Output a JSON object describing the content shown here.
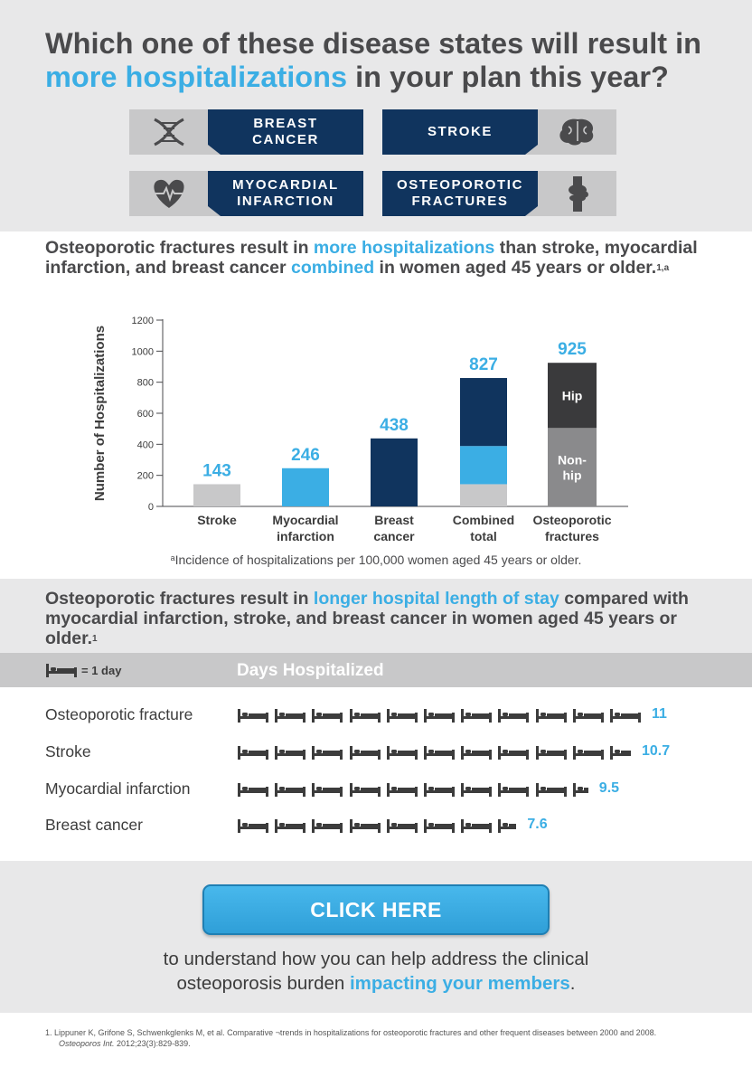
{
  "hero": {
    "line1": "Which one of these disease states will result in",
    "line2_highlight": "more hospitalizations",
    "line2_rest": " in your plan this year?"
  },
  "tiles": [
    {
      "line1": "BREAST",
      "line2": "CANCER",
      "icon": "dna-icon"
    },
    {
      "line1": "STROKE",
      "line2": "",
      "icon": "brain-icon"
    },
    {
      "line1": "MYOCARDIAL",
      "line2": "INFARCTION",
      "icon": "heart-icon"
    },
    {
      "line1": "OSTEOPOROTIC",
      "line2": "FRACTURES",
      "icon": "knee-joint-icon"
    }
  ],
  "section1": {
    "t1": "Osteoporotic fractures result in ",
    "h1": "more hospitalizations",
    "t2": " than stroke, myocardial infarction, and breast cancer ",
    "h2": "combined",
    "t3": " in women aged 45 years or older.",
    "sup": "1,a"
  },
  "chart_data": {
    "type": "bar",
    "ylabel": "Number of Hospitalizations",
    "ylim": [
      0,
      1200
    ],
    "yticks": [
      "0",
      "200",
      "400",
      "600",
      "800",
      "1000",
      "1200"
    ],
    "categories": [
      {
        "label1": "Stroke",
        "label2": ""
      },
      {
        "label1": "Myocardial",
        "label2": "infarction"
      },
      {
        "label1": "Breast",
        "label2": "cancer"
      },
      {
        "label1": "Combined",
        "label2": "total"
      },
      {
        "label1": "Osteoporotic",
        "label2": "fractures"
      }
    ],
    "values": [
      143,
      246,
      438,
      827,
      925
    ],
    "data_labels": [
      "143",
      "246",
      "438",
      "827",
      "925"
    ],
    "combined_stack": [
      143,
      246,
      438
    ],
    "osteoporotic_stack": [
      {
        "name": "Non-hip",
        "label1": "Non-",
        "label2": "hip",
        "value": 505
      },
      {
        "name": "Hip",
        "label1": "Hip",
        "label2": "",
        "value": 420
      }
    ],
    "colors": {
      "stroke": "#c8c8c9",
      "mi": "#3baee4",
      "breast": "#10345e",
      "nonhip": "#8a8a8c",
      "hip": "#3a3a3c",
      "label": "#3baee4"
    },
    "grid": false
  },
  "chart_footnote": {
    "sup": "a",
    "text": "Incidence of hospitalizations per 100,000 women aged 45 years or older."
  },
  "section2": {
    "t1": "Osteoporotic fractures result in ",
    "h1": "longer hospital length of stay",
    "t2": " compared with myocardial infarction, stroke, and breast cancer in women aged 45 years or older.",
    "sup": "1"
  },
  "los": {
    "legend_text": "= 1 day",
    "legend_icon": "bed-icon",
    "header": "Days Hospitalized",
    "rows": [
      {
        "label": "Osteoporotic fracture",
        "value": 11,
        "value_text": "11"
      },
      {
        "label": "Stroke",
        "value": 10.7,
        "value_text": "10.7"
      },
      {
        "label": "Myocardial infarction",
        "value": 9.5,
        "value_text": "9.5"
      },
      {
        "label": "Breast cancer",
        "value": 7.6,
        "value_text": "7.6"
      }
    ]
  },
  "cta": {
    "button": "CLICK HERE",
    "text1": "to understand how you can help address the clinical",
    "text2": "osteoporosis burden ",
    "text2_highlight": "impacting your members",
    "text2_end": "."
  },
  "reference": {
    "line1": "1.  Lippuner K, Grifone S, Schwenkglenks M, et al. Comparative ¬trends in hospitalizations for osteoporotic fractures and other frequent diseases between 2000 and 2008.",
    "journal": "Osteoporos Int.",
    "citation": " 2012;23(3):829-839."
  }
}
